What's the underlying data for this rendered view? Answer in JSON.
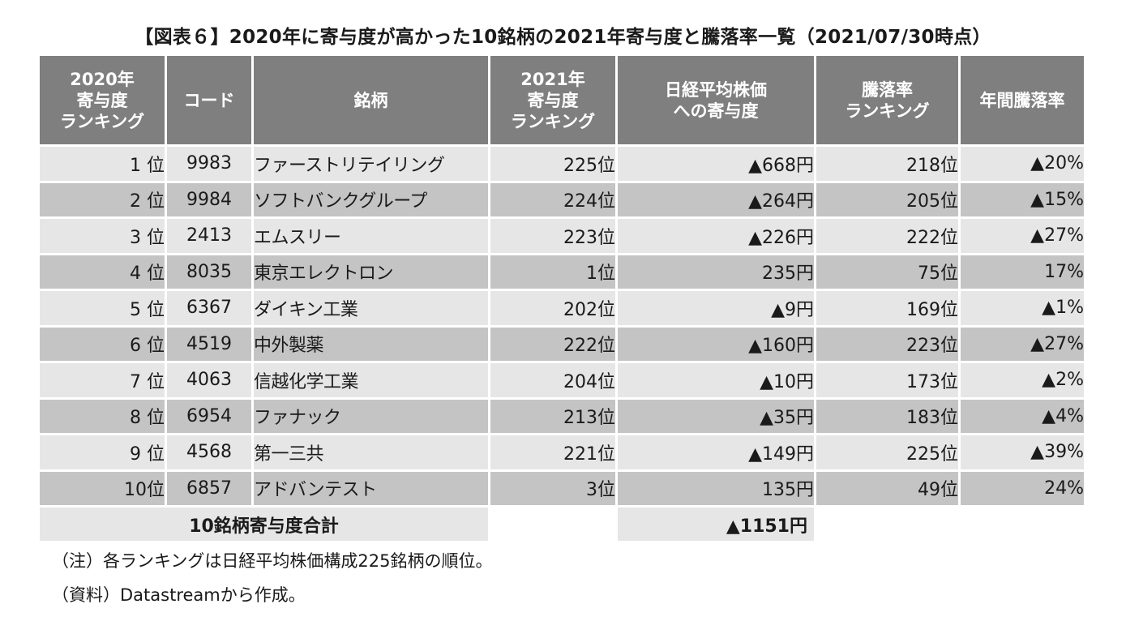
{
  "title": "【図表６】2020年に寄与度が高かった10銘柄の2021年寄与度と騰落率一覧（2021/07/30時点）",
  "headers": [
    "2020年\n寄与度\nランキング",
    "コード",
    "銘柄",
    "2021年\n寄与度\nランキング",
    "日経平均株価\nへの寄与度",
    "騰落率\nランキング",
    "年間騰落率"
  ],
  "rows": [
    [
      "1 位",
      "9983",
      "ファーストリテイリング",
      "225位",
      "▲668円",
      "218位",
      "▲20%"
    ],
    [
      "2 位",
      "9984",
      "ソフトバンクグループ",
      "224位",
      "▲264円",
      "205位",
      "▲15%"
    ],
    [
      "3 位",
      "2413",
      "エムスリー",
      "223位",
      "▲226円",
      "222位",
      "▲27%"
    ],
    [
      "4 位",
      "8035",
      "東京エレクトロン",
      "1位",
      "235円",
      "75位",
      "17%"
    ],
    [
      "5 位",
      "6367",
      "ダイキン工業",
      "202位",
      "▲9円",
      "169位",
      "▲1%"
    ],
    [
      "6 位",
      "4519",
      "中外製薬",
      "222位",
      "▲160円",
      "223位",
      "▲27%"
    ],
    [
      "7 位",
      "4063",
      "信越化学工業",
      "204位",
      "▲10円",
      "173位",
      "▲2%"
    ],
    [
      "8 位",
      "6954",
      "ファナック",
      "213位",
      "▲35円",
      "183位",
      "▲4%"
    ],
    [
      "9 位",
      "4568",
      "第一三共",
      "221位",
      "▲149円",
      "225位",
      "▲39%"
    ],
    [
      "10位",
      "6857",
      "アドバンテスト",
      "3位",
      "135円",
      "49位",
      "24%"
    ]
  ],
  "total": {
    "label": "10銘柄寄与度合計",
    "value": "▲1151円"
  },
  "notes": {
    "note": "（注）各ランキングは日経平均株価構成225銘柄の順位。",
    "source": "（資料）Datastreamから作成。"
  },
  "colors": {
    "header_bg": "#7f7f7f",
    "row_light": "#e6e6e6",
    "row_dark": "#c4c4c4"
  }
}
